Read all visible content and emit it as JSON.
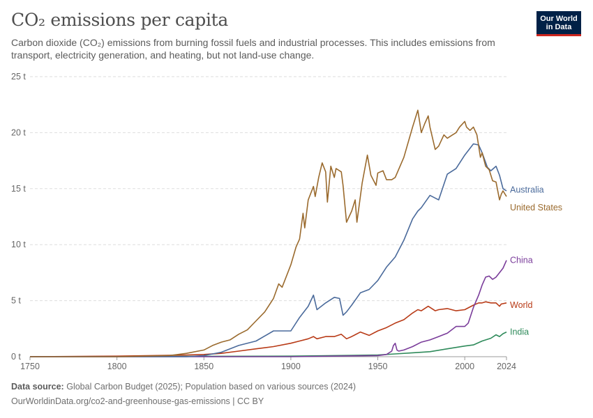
{
  "header": {
    "title": "CO₂ emissions per capita",
    "subtitle": "Carbon dioxide (CO₂) emissions from burning fossil fuels and industrial processes. This includes emissions from transport, electricity generation, and heating, but not land-use change.",
    "logo_line1": "Our World",
    "logo_line2": "in Data"
  },
  "footer": {
    "source_label": "Data source:",
    "source_text": "Global Carbon Budget (2025); Population based on various sources (2024)",
    "credit": "OurWorldinData.org/co2-and-greenhouse-gas-emissions | CC BY"
  },
  "colors": {
    "United States": "#9a6a2d",
    "Australia": "#4a6a9b",
    "China": "#7a3c9a",
    "World": "#b83a16",
    "India": "#2e8a5a"
  },
  "chart_data": {
    "type": "line",
    "xlabel": "",
    "ylabel": "",
    "xlim": [
      1750,
      2024
    ],
    "ylim": [
      0,
      25
    ],
    "x_ticks": [
      1750,
      1800,
      1850,
      1900,
      1950,
      2000,
      2024
    ],
    "y_ticks": [
      0,
      5,
      10,
      15,
      20,
      25
    ],
    "y_tick_labels": [
      "0 t",
      "5 t",
      "10 t",
      "15 t",
      "20 t",
      "25 t"
    ],
    "grid": "horizontal dashed",
    "legend": "inline-right",
    "series": [
      {
        "name": "Australia",
        "x": [
          1750,
          1800,
          1840,
          1850,
          1860,
          1870,
          1880,
          1890,
          1900,
          1905,
          1910,
          1913,
          1915,
          1920,
          1925,
          1928,
          1930,
          1932,
          1935,
          1940,
          1945,
          1950,
          1955,
          1960,
          1965,
          1970,
          1973,
          1975,
          1980,
          1985,
          1990,
          1995,
          2000,
          2005,
          2008,
          2010,
          2013,
          2015,
          2018,
          2020,
          2022,
          2024
        ],
        "y": [
          0,
          0,
          0,
          0.1,
          0.4,
          1.0,
          1.4,
          2.3,
          2.3,
          3.5,
          4.5,
          5.5,
          4.2,
          4.8,
          5.3,
          5.2,
          3.7,
          4.0,
          4.6,
          5.7,
          6.0,
          6.8,
          8.0,
          8.9,
          10.4,
          12.3,
          13.0,
          13.3,
          14.4,
          14.0,
          16.3,
          16.8,
          18.0,
          19.0,
          18.9,
          18.2,
          16.9,
          16.6,
          17.0,
          16.2,
          15.0,
          14.8
        ]
      },
      {
        "name": "United States",
        "x": [
          1750,
          1800,
          1830,
          1840,
          1850,
          1855,
          1860,
          1865,
          1870,
          1875,
          1880,
          1885,
          1890,
          1893,
          1895,
          1900,
          1903,
          1905,
          1907,
          1908,
          1910,
          1913,
          1914,
          1916,
          1918,
          1920,
          1921,
          1923,
          1925,
          1926,
          1929,
          1930,
          1932,
          1935,
          1937,
          1938,
          1941,
          1944,
          1946,
          1949,
          1950,
          1953,
          1955,
          1958,
          1960,
          1965,
          1970,
          1973,
          1974,
          1975,
          1977,
          1979,
          1980,
          1983,
          1985,
          1988,
          1990,
          1993,
          1995,
          1997,
          2000,
          2001,
          2003,
          2005,
          2007,
          2009,
          2010,
          2012,
          2014,
          2016,
          2018,
          2020,
          2021,
          2022,
          2024
        ],
        "y": [
          0,
          0,
          0.1,
          0.3,
          0.6,
          1.0,
          1.3,
          1.5,
          2.0,
          2.4,
          3.2,
          4.0,
          5.2,
          6.5,
          6.2,
          8.2,
          9.8,
          10.5,
          12.8,
          11.5,
          14.0,
          15.2,
          14.3,
          16.0,
          17.3,
          16.5,
          13.8,
          17.0,
          16.0,
          16.8,
          16.5,
          15.3,
          12.0,
          13.0,
          14.0,
          12.0,
          15.5,
          18.0,
          16.2,
          15.3,
          16.4,
          16.6,
          15.8,
          15.8,
          16.0,
          17.8,
          20.5,
          22.0,
          21.0,
          20.0,
          20.8,
          21.5,
          20.5,
          18.5,
          18.8,
          19.8,
          19.5,
          19.8,
          20.0,
          20.5,
          21.0,
          20.5,
          20.2,
          20.5,
          19.8,
          17.8,
          18.2,
          17.0,
          16.7,
          15.7,
          15.6,
          14.0,
          14.5,
          14.8,
          14.3
        ]
      },
      {
        "name": "China",
        "x": [
          1750,
          1900,
          1950,
          1955,
          1958,
          1959,
          1960,
          1961,
          1962,
          1965,
          1970,
          1975,
          1980,
          1985,
          1990,
          1995,
          2000,
          2002,
          2005,
          2008,
          2010,
          2012,
          2014,
          2016,
          2018,
          2020,
          2022,
          2024
        ],
        "y": [
          0,
          0,
          0.1,
          0.2,
          0.5,
          1.0,
          1.2,
          0.6,
          0.5,
          0.6,
          0.9,
          1.3,
          1.5,
          1.8,
          2.1,
          2.7,
          2.7,
          3.0,
          4.4,
          5.5,
          6.4,
          7.1,
          7.2,
          6.9,
          7.1,
          7.5,
          7.9,
          8.6
        ]
      },
      {
        "name": "World",
        "x": [
          1750,
          1800,
          1820,
          1840,
          1850,
          1860,
          1870,
          1880,
          1890,
          1900,
          1905,
          1910,
          1913,
          1915,
          1920,
          1925,
          1929,
          1932,
          1935,
          1940,
          1945,
          1950,
          1955,
          1960,
          1965,
          1970,
          1973,
          1975,
          1979,
          1980,
          1983,
          1985,
          1990,
          1995,
          2000,
          2005,
          2008,
          2010,
          2012,
          2015,
          2018,
          2020,
          2021,
          2024
        ],
        "y": [
          0,
          0.05,
          0.1,
          0.15,
          0.2,
          0.3,
          0.5,
          0.7,
          0.9,
          1.2,
          1.4,
          1.6,
          1.8,
          1.6,
          1.8,
          1.8,
          2.0,
          1.6,
          1.8,
          2.2,
          1.9,
          2.3,
          2.6,
          3.0,
          3.3,
          3.9,
          4.2,
          4.1,
          4.5,
          4.4,
          4.1,
          4.2,
          4.3,
          4.1,
          4.2,
          4.6,
          4.8,
          4.8,
          4.9,
          4.8,
          4.8,
          4.5,
          4.7,
          4.8
        ]
      },
      {
        "name": "India",
        "x": [
          1750,
          1900,
          1950,
          1960,
          1970,
          1980,
          1990,
          2000,
          2005,
          2010,
          2015,
          2018,
          2020,
          2022,
          2024
        ],
        "y": [
          0,
          0.05,
          0.15,
          0.25,
          0.35,
          0.45,
          0.7,
          0.95,
          1.05,
          1.4,
          1.65,
          1.95,
          1.8,
          2.05,
          2.2
        ]
      }
    ],
    "end_labels": [
      "Australia",
      "United States",
      "China",
      "World",
      "India"
    ]
  }
}
